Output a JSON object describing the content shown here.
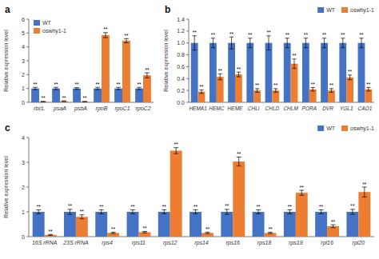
{
  "chart_data": [
    {
      "type": "bar",
      "title": "a",
      "categories": [
        "rbcL",
        "psaA",
        "psbA",
        "rpoB",
        "rpoC1",
        "rpoC2"
      ],
      "series": [
        {
          "name": "WT",
          "color": "#4472C4",
          "values": [
            1.0,
            1.0,
            1.0,
            1.0,
            1.0,
            1.0
          ],
          "errors": [
            0.08,
            0.08,
            0.06,
            0.08,
            0.08,
            0.08
          ],
          "annotations": [
            "**",
            "**",
            "**",
            "**",
            "**",
            "**"
          ]
        },
        {
          "name": "oswhy1-1",
          "color": "#ED7D31",
          "values": [
            0.05,
            0.08,
            0.05,
            4.85,
            4.45,
            1.95
          ],
          "errors": [
            0.02,
            0.03,
            0.02,
            0.18,
            0.15,
            0.18
          ],
          "annotations": [
            "**",
            "**",
            "**",
            "**",
            "**",
            "**"
          ]
        }
      ],
      "ylim": [
        0,
        6
      ],
      "yticks": [
        0,
        1,
        2,
        3,
        4,
        5,
        6
      ],
      "ylabel": "Relative expression level",
      "legend": "upper left"
    },
    {
      "type": "bar",
      "title": "b",
      "categories": [
        "HEMA1",
        "HEMC",
        "HEME",
        "CHLI",
        "CHLD",
        "CHLM",
        "PORA",
        "DVR",
        "YGL1",
        "CAO1"
      ],
      "series": [
        {
          "name": "WT",
          "color": "#4472C4",
          "values": [
            1.0,
            1.0,
            1.0,
            1.0,
            1.0,
            1.0,
            1.0,
            1.0,
            1.0,
            1.0
          ],
          "errors": [
            0.12,
            0.08,
            0.1,
            0.08,
            0.12,
            0.08,
            0.08,
            0.08,
            0.08,
            0.08
          ],
          "annotations": [
            "**",
            "**",
            "**",
            "**",
            "**",
            "**",
            "**",
            "**",
            "**",
            "**"
          ]
        },
        {
          "name": "oswhy1-1",
          "color": "#ED7D31",
          "values": [
            0.18,
            0.43,
            0.47,
            0.2,
            0.2,
            0.65,
            0.22,
            0.2,
            0.42,
            0.22
          ],
          "errors": [
            0.03,
            0.05,
            0.04,
            0.03,
            0.03,
            0.08,
            0.03,
            0.03,
            0.04,
            0.03
          ],
          "annotations": [
            "**",
            "**",
            "**",
            "**",
            "**",
            "**",
            "**",
            "**",
            "**",
            "**"
          ]
        }
      ],
      "ylim": [
        0,
        1.4
      ],
      "yticks": [
        {
          "value": 0,
          "label": "0.0"
        },
        0.2,
        0.4,
        0.6,
        0.8,
        {
          "value": 1,
          "label": "1.0"
        },
        1.2,
        1.4
      ],
      "ylabel": "Relative expression level",
      "legend": "upper right"
    },
    {
      "type": "bar",
      "title": "c",
      "categories": [
        "16S rRNA",
        "23S rRNA",
        "rps4",
        "rps11",
        "rps12",
        "rps14",
        "rps16",
        "rps18",
        "rps19",
        "rpl16",
        "rpl20"
      ],
      "series": [
        {
          "name": "WT",
          "color": "#4472C4",
          "values": [
            1.0,
            1.0,
            1.0,
            1.0,
            1.0,
            1.0,
            1.0,
            1.0,
            1.0,
            1.0,
            1.0
          ],
          "errors": [
            0.08,
            0.1,
            0.08,
            0.08,
            0.08,
            0.08,
            0.1,
            0.08,
            0.08,
            0.08,
            0.1
          ],
          "annotations": [
            "**",
            "**",
            "**",
            "**",
            "**",
            "**",
            "**",
            "**",
            "**",
            "**",
            "**"
          ]
        },
        {
          "name": "oswhy1-1",
          "color": "#ED7D31",
          "values": [
            0.07,
            0.8,
            0.15,
            0.18,
            3.47,
            0.15,
            3.03,
            0.15,
            1.77,
            0.42,
            1.8
          ],
          "errors": [
            0.02,
            0.08,
            0.03,
            0.03,
            0.12,
            0.03,
            0.18,
            0.03,
            0.1,
            0.06,
            0.2
          ],
          "annotations": [
            "**",
            "**",
            "**",
            "**",
            "**",
            "**",
            "**",
            "**",
            "**",
            "**",
            "**"
          ]
        }
      ],
      "ylim": [
        0,
        4
      ],
      "yticks": [
        0,
        1,
        2,
        3,
        4
      ],
      "ylabel": "Relative expression level",
      "legend": "upper right"
    }
  ]
}
